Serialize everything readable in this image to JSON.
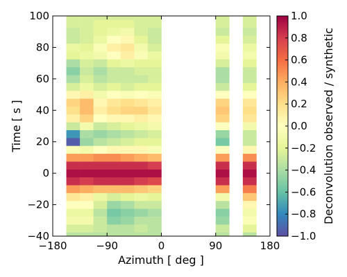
{
  "chart_data": {
    "type": "heatmap",
    "xlabel": "Azimuth [ deg ]",
    "ylabel": "Time [ s ]",
    "colorbar_label": "Deconvolution observed / synthetic",
    "colormap": "Spectral_r",
    "xlim": [
      -180,
      180
    ],
    "ylim": [
      -40,
      100
    ],
    "clim": [
      -1.0,
      1.0
    ],
    "x_ticks": [
      -180,
      -90,
      0,
      90,
      180
    ],
    "x_tick_labels": [
      "−180",
      "−90",
      "0",
      "90",
      "180"
    ],
    "y_ticks": [
      -40,
      -20,
      0,
      20,
      40,
      60,
      80,
      100
    ],
    "y_tick_labels": [
      "−40",
      "−20",
      "0",
      "20",
      "40",
      "60",
      "80",
      "100"
    ],
    "colorbar_ticks": [
      -1.0,
      -0.8,
      -0.6,
      -0.4,
      -0.2,
      0.0,
      0.2,
      0.4,
      0.6,
      0.8,
      1.0
    ],
    "colorbar_tick_labels": [
      "−1.0",
      "−0.8",
      "−0.6",
      "−0.4",
      "−0.2",
      "0.0",
      "0.2",
      "0.4",
      "0.6",
      "0.8",
      "1.0"
    ],
    "column_width_deg": 22.5,
    "columns_azimuth": [
      -146.25,
      -123.75,
      -101.25,
      -78.75,
      -56.25,
      -33.75,
      -11.25,
      101.25,
      146.25
    ],
    "time_samples": [
      -40,
      -35,
      -30,
      -25,
      -20,
      -15,
      -10,
      -5,
      0,
      5,
      10,
      15,
      20,
      25,
      30,
      35,
      40,
      45,
      50,
      55,
      60,
      65,
      70,
      75,
      80,
      85,
      90,
      95,
      100
    ],
    "values": [
      [
        -0.35,
        -0.35,
        -0.35,
        -0.35,
        -0.35,
        -0.35,
        -0.35,
        -0.35,
        -0.35
      ],
      [
        -0.25,
        -0.25,
        -0.3,
        -0.35,
        -0.35,
        -0.3,
        -0.35,
        -0.3,
        -0.2
      ],
      [
        -0.1,
        -0.1,
        -0.3,
        -0.5,
        -0.45,
        -0.35,
        -0.35,
        -0.45,
        -0.05
      ],
      [
        -0.15,
        -0.15,
        -0.35,
        -0.55,
        -0.5,
        -0.45,
        -0.4,
        -0.5,
        -0.1
      ],
      [
        0.0,
        0.0,
        -0.25,
        -0.45,
        -0.4,
        -0.3,
        -0.3,
        -0.35,
        0.05
      ],
      [
        0.15,
        0.1,
        -0.15,
        -0.25,
        -0.2,
        -0.15,
        -0.2,
        -0.1,
        0.3
      ],
      [
        0.45,
        0.4,
        0.35,
        0.35,
        0.35,
        0.3,
        0.25,
        0.45,
        0.55
      ],
      [
        0.85,
        0.8,
        0.85,
        0.85,
        0.85,
        0.8,
        0.75,
        0.85,
        0.85
      ],
      [
        0.95,
        0.95,
        0.95,
        0.95,
        0.95,
        0.95,
        0.95,
        0.95,
        0.95
      ],
      [
        0.85,
        0.85,
        0.85,
        0.85,
        0.85,
        0.85,
        0.8,
        0.85,
        0.85
      ],
      [
        0.45,
        0.45,
        0.5,
        0.5,
        0.45,
        0.4,
        0.35,
        0.45,
        0.5
      ],
      [
        -0.05,
        -0.1,
        0.0,
        0.05,
        0.05,
        0.05,
        -0.05,
        0.0,
        0.05
      ],
      [
        -0.95,
        -0.45,
        -0.35,
        -0.3,
        -0.25,
        -0.2,
        -0.2,
        -0.55,
        -0.3
      ],
      [
        -0.75,
        -0.4,
        -0.45,
        -0.4,
        -0.35,
        -0.3,
        -0.25,
        -0.45,
        -0.3
      ],
      [
        -0.3,
        -0.1,
        -0.3,
        -0.25,
        -0.2,
        -0.15,
        -0.1,
        0.0,
        -0.1
      ],
      [
        0.1,
        0.25,
        0.0,
        0.05,
        0.05,
        0.1,
        0.05,
        0.25,
        0.15
      ],
      [
        0.2,
        0.35,
        0.1,
        0.2,
        0.25,
        0.25,
        0.15,
        0.3,
        0.2
      ],
      [
        0.25,
        0.35,
        0.05,
        0.15,
        0.2,
        0.15,
        0.1,
        0.25,
        0.15
      ],
      [
        0.05,
        0.1,
        -0.1,
        0.0,
        -0.05,
        0.0,
        -0.05,
        0.0,
        0.0
      ],
      [
        -0.25,
        -0.15,
        -0.25,
        -0.2,
        -0.25,
        -0.2,
        -0.2,
        -0.3,
        -0.2
      ],
      [
        -0.4,
        -0.25,
        -0.35,
        -0.3,
        -0.3,
        -0.3,
        -0.25,
        -0.4,
        -0.3
      ],
      [
        -0.5,
        -0.3,
        -0.4,
        -0.3,
        -0.3,
        -0.25,
        -0.25,
        -0.4,
        -0.3
      ],
      [
        -0.4,
        -0.25,
        -0.3,
        -0.2,
        -0.15,
        -0.2,
        -0.2,
        -0.25,
        -0.2
      ],
      [
        -0.2,
        -0.15,
        -0.1,
        0.0,
        0.1,
        -0.05,
        -0.15,
        -0.1,
        -0.1
      ],
      [
        -0.15,
        -0.2,
        -0.05,
        0.1,
        0.15,
        -0.1,
        -0.25,
        -0.05,
        -0.15
      ],
      [
        -0.3,
        -0.25,
        -0.15,
        0.0,
        0.05,
        -0.2,
        -0.3,
        -0.2,
        -0.25
      ],
      [
        -0.3,
        -0.25,
        -0.2,
        -0.15,
        -0.1,
        -0.25,
        -0.3,
        -0.3,
        -0.3
      ],
      [
        -0.25,
        -0.25,
        -0.2,
        -0.2,
        -0.2,
        -0.25,
        -0.25,
        -0.25,
        -0.25
      ],
      [
        -0.25,
        -0.25,
        -0.25,
        -0.25,
        -0.25,
        -0.25,
        -0.25,
        -0.25,
        -0.25
      ]
    ]
  }
}
